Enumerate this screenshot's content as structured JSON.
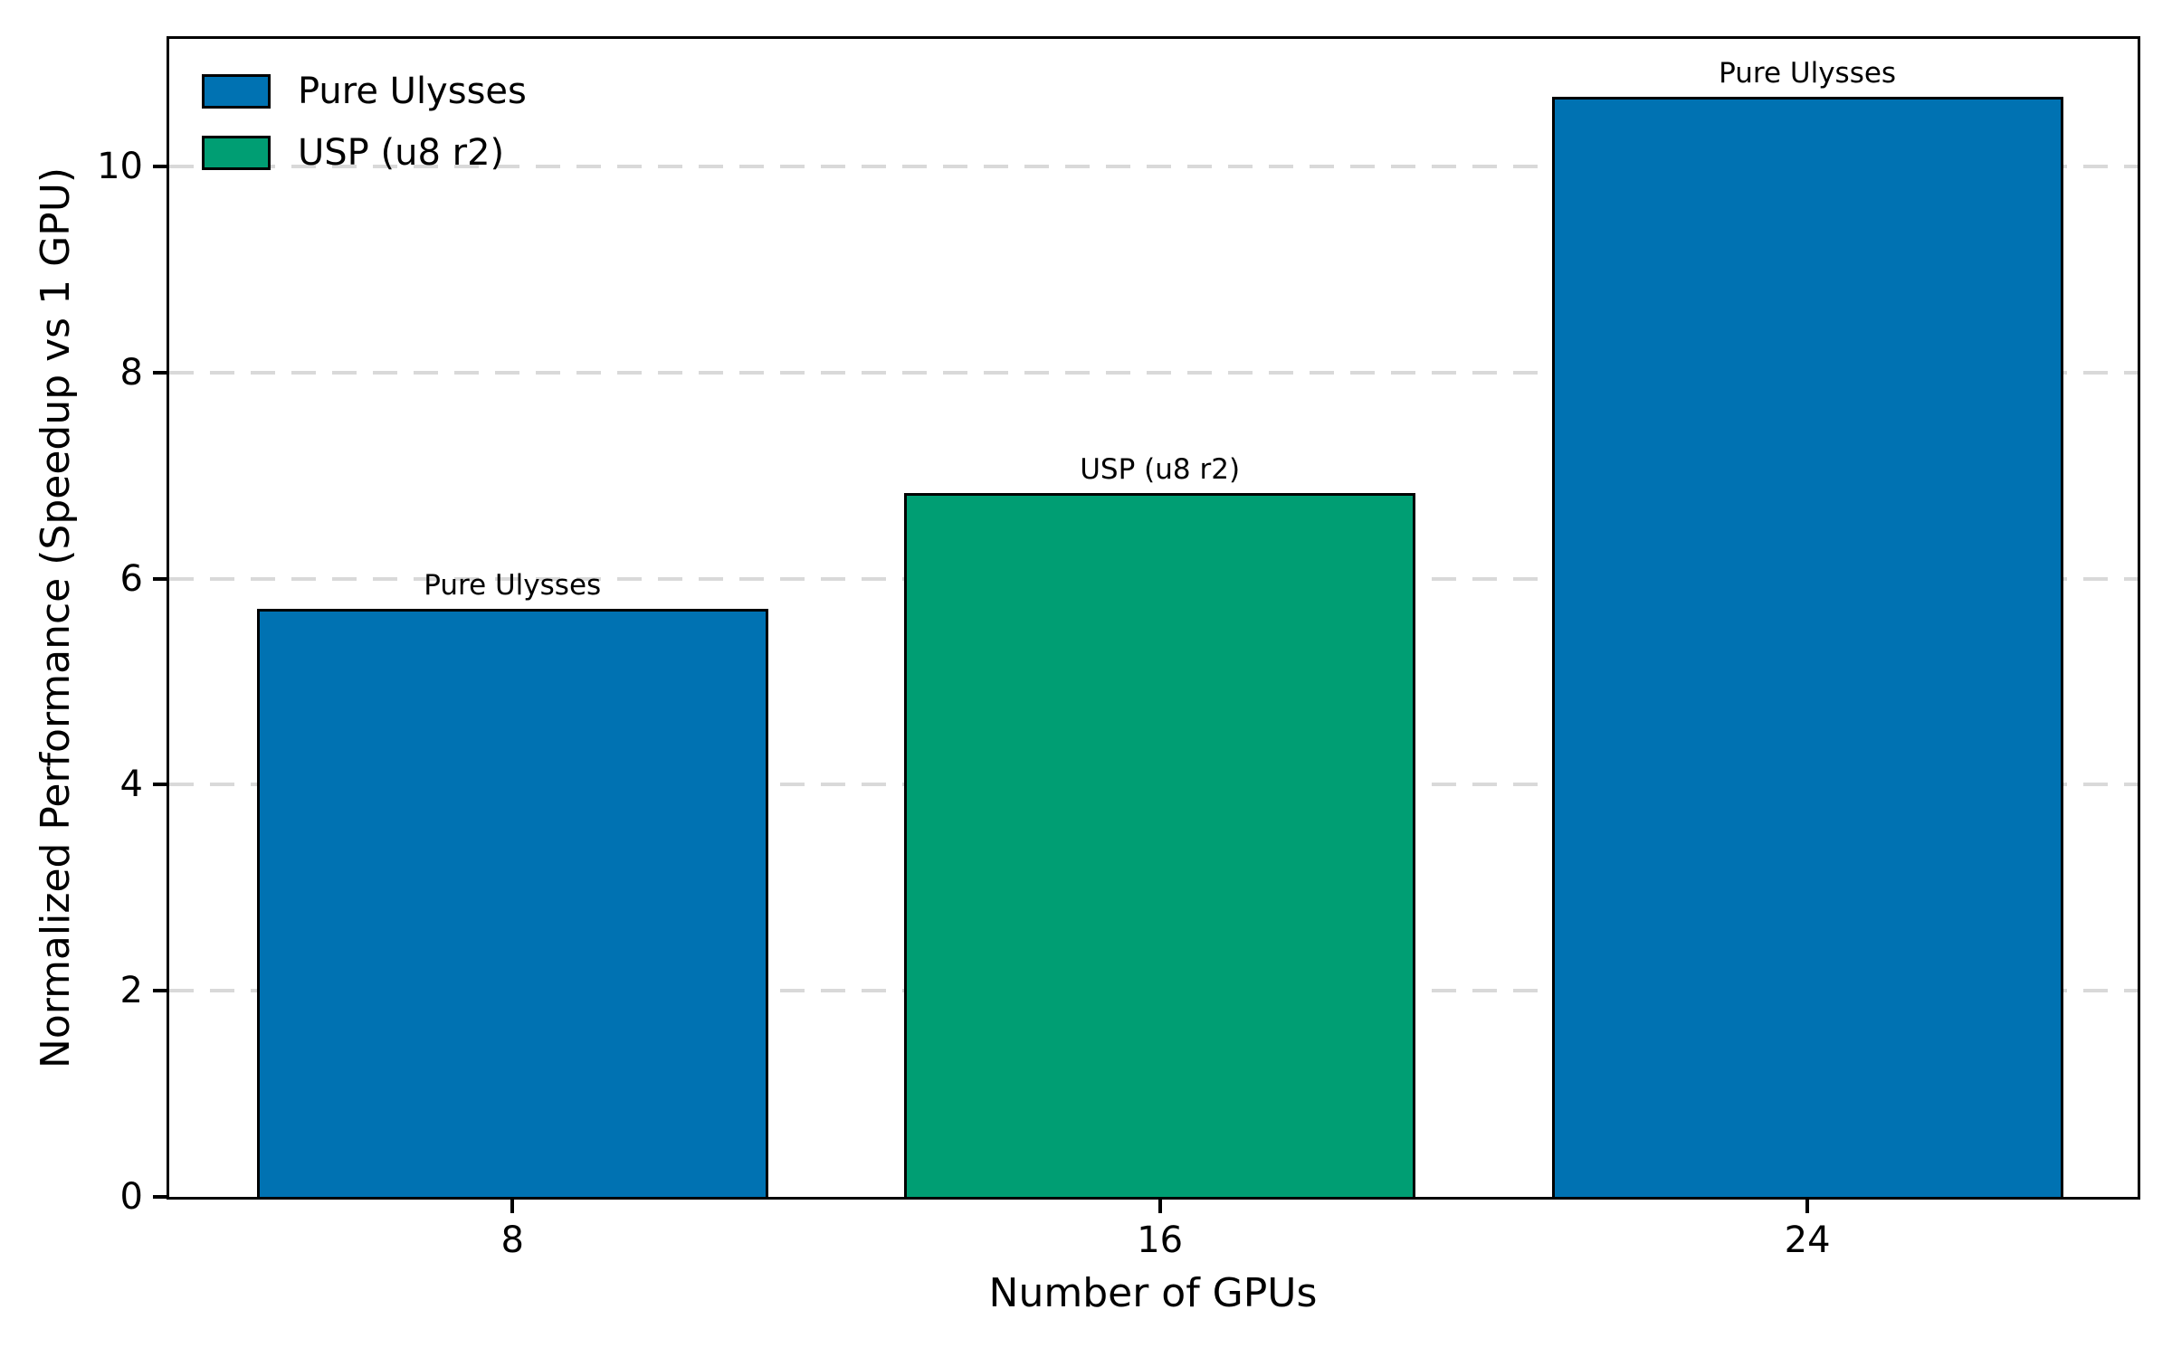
{
  "chart_data": {
    "type": "bar",
    "title": "",
    "xlabel": "Number of GPUs",
    "ylabel": "Normalized Performance (Speedup vs 1 GPU)",
    "categories": [
      "8",
      "16",
      "24"
    ],
    "bars": [
      {
        "category": "8",
        "label": "Pure Ulysses",
        "series": "Pure Ulysses",
        "value": 5.71,
        "color": "#0072B2"
      },
      {
        "category": "16",
        "label": "USP (u8 r2)",
        "series": "USP (u8 r2)",
        "value": 6.83,
        "color": "#009E73"
      },
      {
        "category": "24",
        "label": "Pure Ulysses",
        "series": "Pure Ulysses",
        "value": 10.68,
        "color": "#0072B2"
      }
    ],
    "legend": {
      "position": "upper left",
      "items": [
        {
          "label": "Pure Ulysses",
          "color": "#0072B2"
        },
        {
          "label": "USP (u8 r2)",
          "color": "#009E73"
        }
      ]
    },
    "yticks": [
      0,
      2,
      4,
      6,
      8,
      10
    ],
    "ylim": [
      0,
      11.24
    ],
    "xlim": [
      -0.53,
      2.51
    ],
    "bar_width": 0.79,
    "grid": {
      "axis": "y",
      "style": "dashed",
      "color": "#d9d9d9"
    },
    "colors": {
      "bar_edge": "#000000",
      "axis": "#000000",
      "background": "#ffffff"
    }
  }
}
